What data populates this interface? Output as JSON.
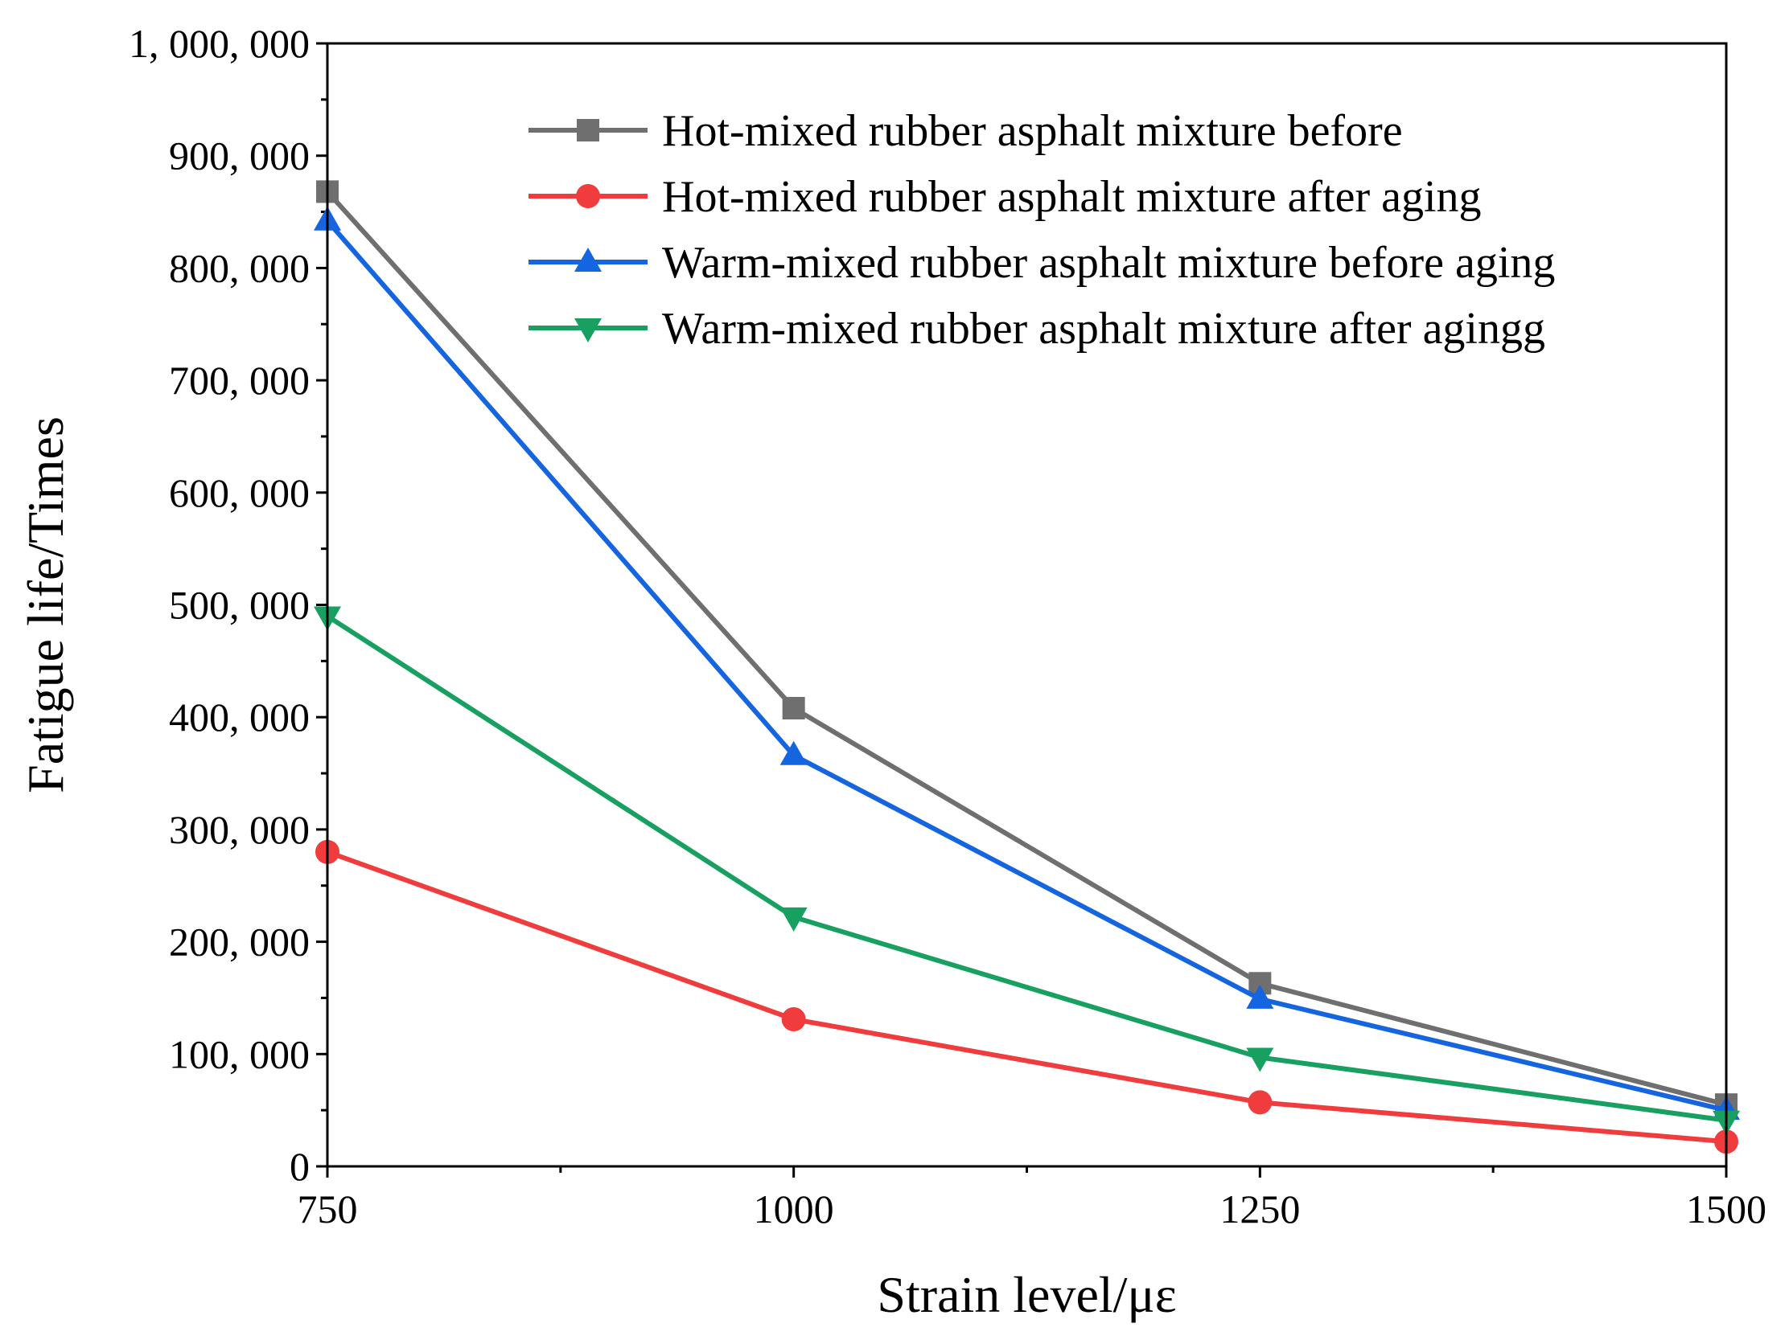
{
  "chart_data": {
    "type": "line",
    "title": "",
    "xlabel": "Strain level/με",
    "ylabel": "Fatigue life/Times",
    "x": [
      750,
      1000,
      1250,
      1500
    ],
    "xlim": [
      750,
      1500
    ],
    "ylim": [
      0,
      1000000
    ],
    "xticks": [
      750,
      1000,
      1250,
      1500
    ],
    "xtick_labels": [
      "750",
      "1000",
      "1250",
      "1500"
    ],
    "yticks": [
      0,
      100000,
      200000,
      300000,
      400000,
      500000,
      600000,
      700000,
      800000,
      900000,
      1000000
    ],
    "ytick_labels": [
      "0",
      "100, 000",
      "200, 000",
      "300, 000",
      "400, 000",
      "500, 000",
      "600, 000",
      "700, 000",
      "800, 000",
      "900, 000",
      "1, 000, 000"
    ],
    "grid": false,
    "legend_position": "top-right",
    "series": [
      {
        "name": "Hot-mixed rubber asphalt mixture before",
        "marker": "square",
        "color": "#6f6f6f",
        "values": [
          868000,
          408000,
          163000,
          55000
        ]
      },
      {
        "name": "Hot-mixed rubber asphalt mixture after aging",
        "marker": "circle",
        "color": "#f03c3c",
        "values": [
          280000,
          131000,
          57000,
          22000
        ]
      },
      {
        "name": "Warm-mixed rubber asphalt mixture before aging",
        "marker": "triangle-up",
        "color": "#1565e0",
        "values": [
          842000,
          366000,
          149000,
          50000
        ]
      },
      {
        "name": "Warm-mixed rubber asphalt mixture after agingg",
        "marker": "triangle-down",
        "color": "#17a060",
        "values": [
          490000,
          222000,
          97000,
          41000
        ]
      }
    ]
  }
}
